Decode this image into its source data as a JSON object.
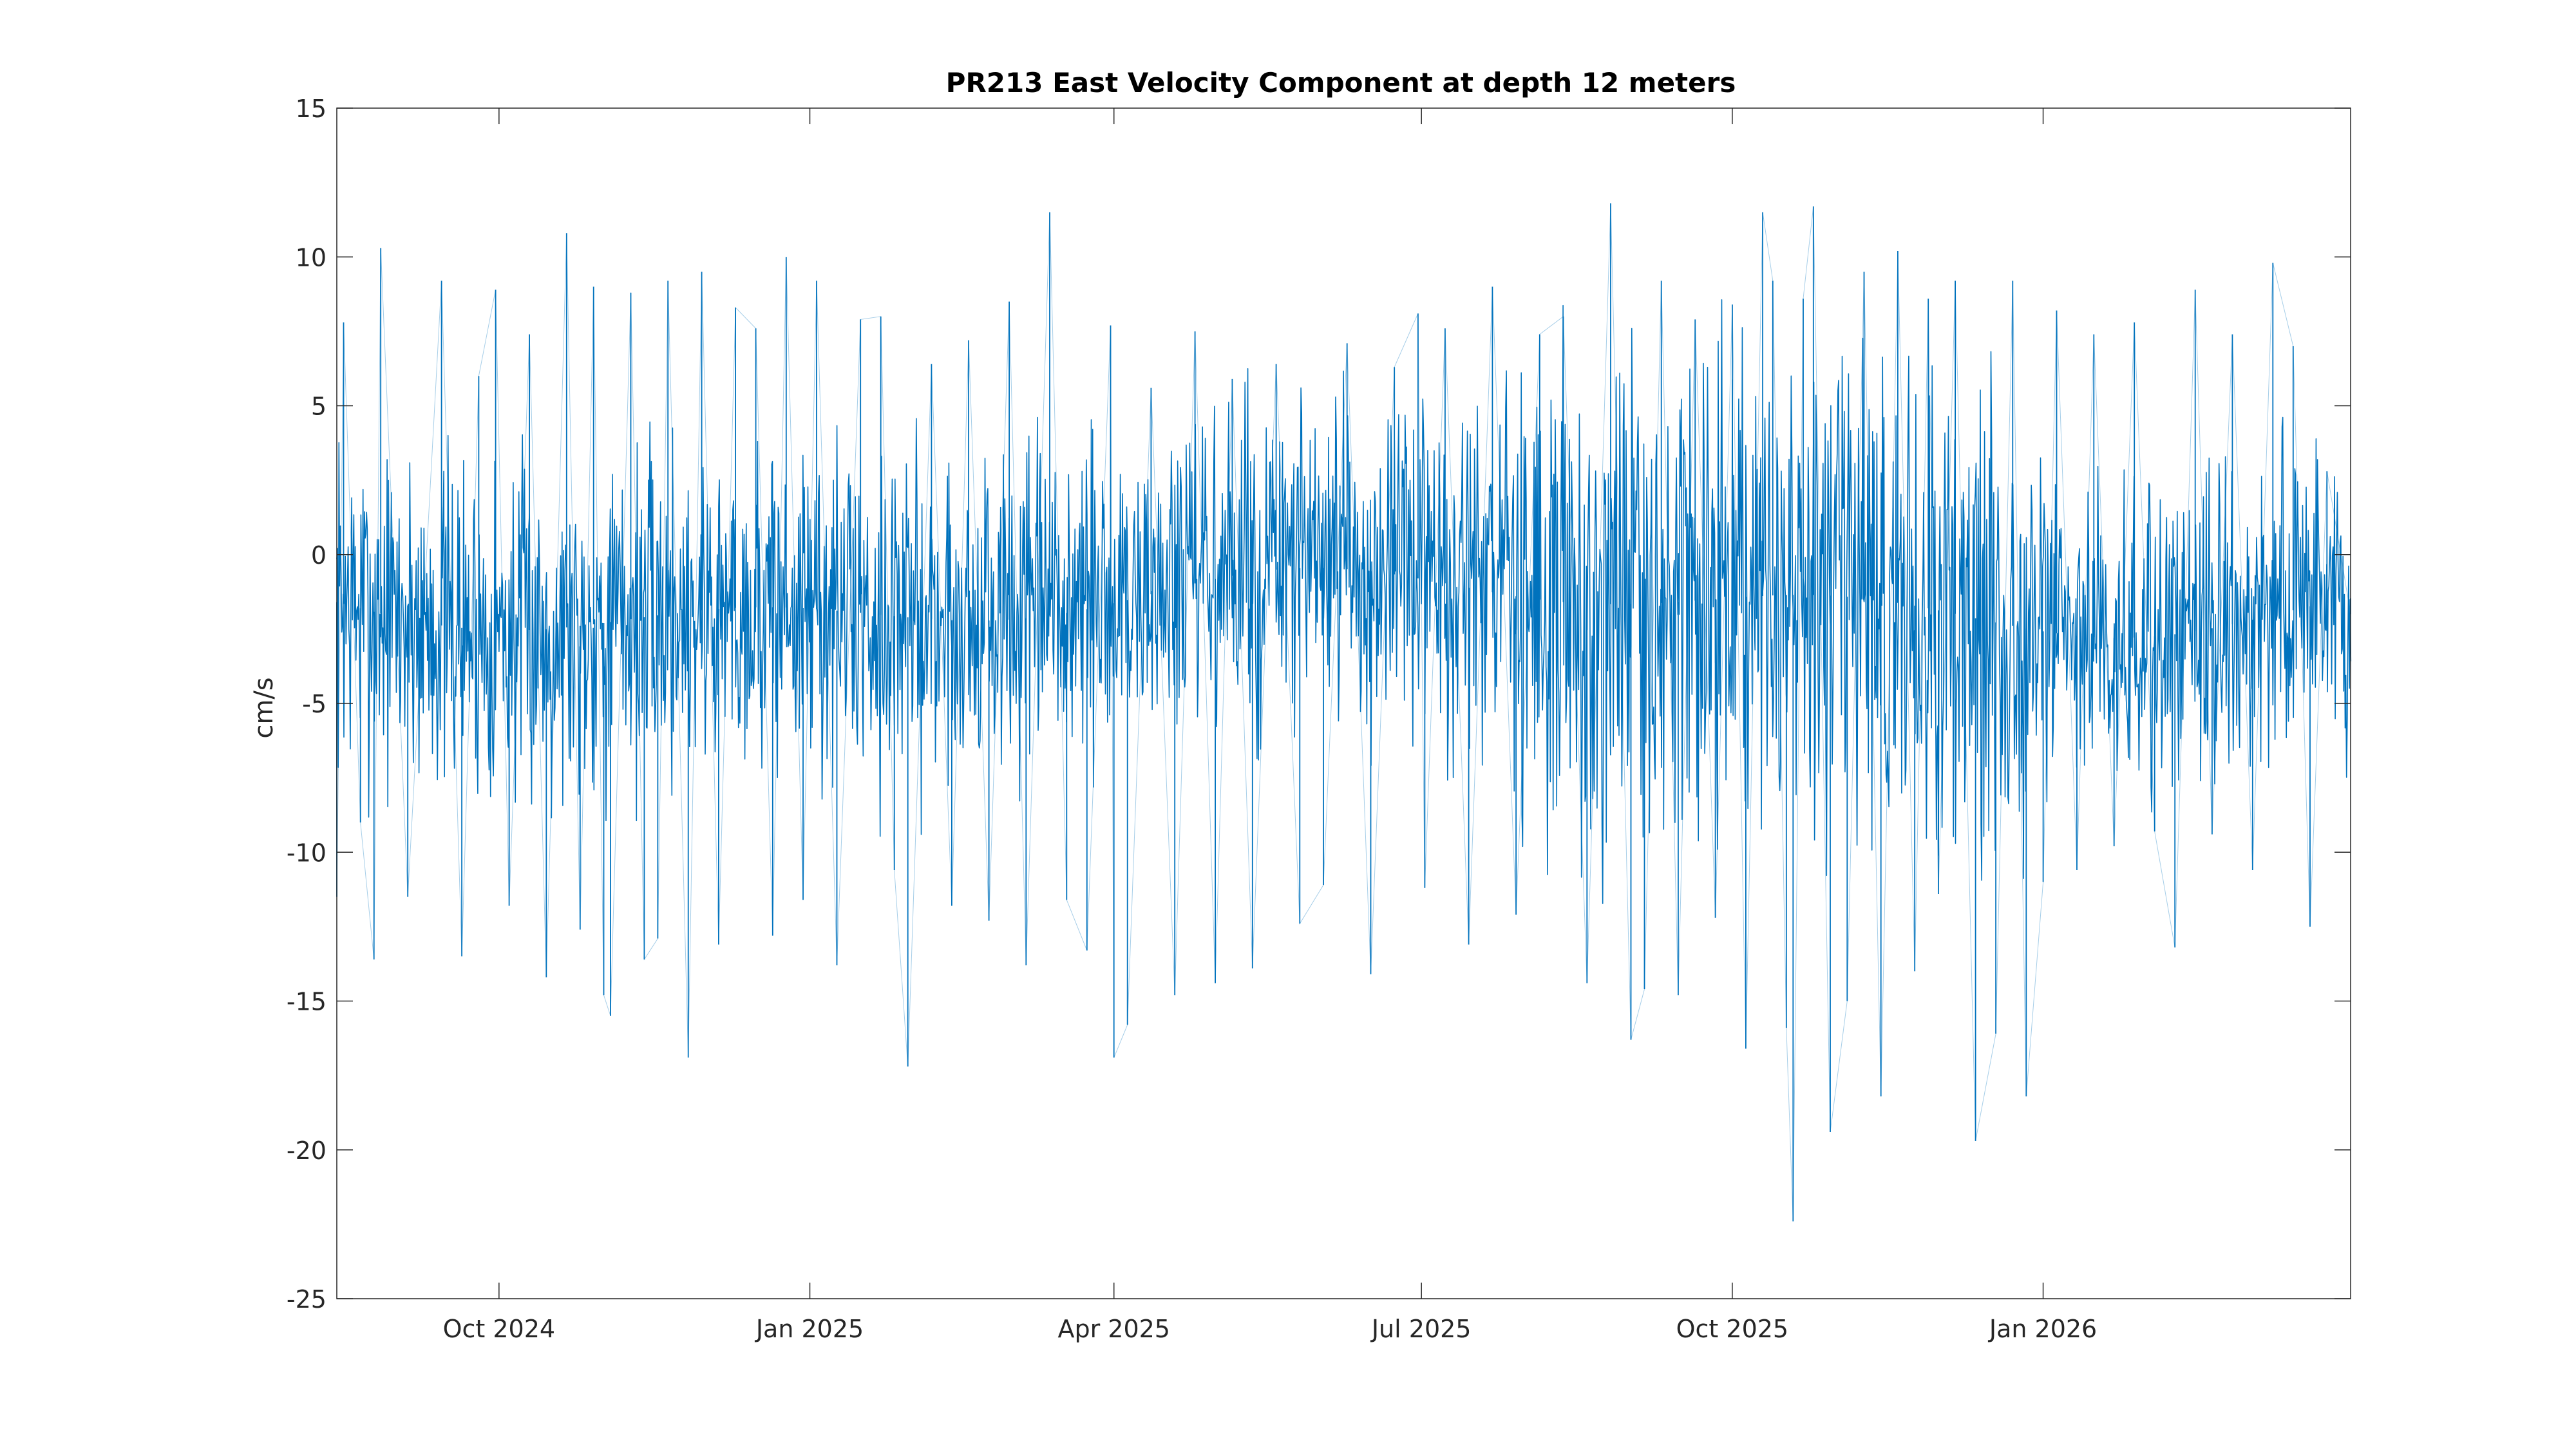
{
  "chart_data": {
    "type": "line",
    "title": "PR213 East Velocity Component at depth 12 meters",
    "xlabel": "",
    "ylabel": "cm/s",
    "xlim": [
      "2024-08-14",
      "2026-04-02"
    ],
    "ylim": [
      -25,
      15
    ],
    "x_ticks": [
      {
        "date": "2024-10-01",
        "label": "Oct 2024"
      },
      {
        "date": "2025-01-01",
        "label": "Jan 2025"
      },
      {
        "date": "2025-04-01",
        "label": "Apr 2025"
      },
      {
        "date": "2025-07-01",
        "label": "Jul 2025"
      },
      {
        "date": "2025-10-01",
        "label": "Oct 2025"
      },
      {
        "date": "2026-01-01",
        "label": "Jan 2026"
      }
    ],
    "y_ticks": [
      15,
      10,
      5,
      0,
      -5,
      -10,
      -15,
      -20,
      -25
    ],
    "grid": false,
    "series": [
      {
        "color": "#0072BD",
        "x": [
          "2024-08-14",
          "2024-08-16",
          "2024-08-21",
          "2024-08-25",
          "2024-08-27",
          "2024-09-04",
          "2024-09-14",
          "2024-09-20",
          "2024-09-25",
          "2024-09-30",
          "2024-10-04",
          "2024-10-10",
          "2024-10-15",
          "2024-10-21",
          "2024-10-25",
          "2024-10-29",
          "2024-11-01",
          "2024-11-03",
          "2024-11-09",
          "2024-11-13",
          "2024-11-17",
          "2024-11-20",
          "2024-11-26",
          "2024-11-30",
          "2024-12-05",
          "2024-12-10",
          "2024-12-16",
          "2024-12-21",
          "2024-12-25",
          "2024-12-30",
          "2025-01-03",
          "2025-01-09",
          "2025-01-16",
          "2025-01-22",
          "2025-01-26",
          "2025-01-30",
          "2025-02-06",
          "2025-02-12",
          "2025-02-17",
          "2025-02-23",
          "2025-03-01",
          "2025-03-06",
          "2025-03-13",
          "2025-03-18",
          "2025-03-24",
          "2025-03-31",
          "2025-04-01",
          "2025-04-05",
          "2025-04-12",
          "2025-04-19",
          "2025-04-25",
          "2025-05-01",
          "2025-05-06",
          "2025-05-12",
          "2025-05-19",
          "2025-05-26",
          "2025-06-02",
          "2025-06-09",
          "2025-06-16",
          "2025-06-23",
          "2025-06-30",
          "2025-07-02",
          "2025-07-08",
          "2025-07-15",
          "2025-07-22",
          "2025-07-29",
          "2025-08-05",
          "2025-08-12",
          "2025-08-19",
          "2025-08-26",
          "2025-09-01",
          "2025-09-05",
          "2025-09-10",
          "2025-09-15",
          "2025-09-20",
          "2025-09-26",
          "2025-10-01",
          "2025-10-05",
          "2025-10-10",
          "2025-10-13",
          "2025-10-17",
          "2025-10-19",
          "2025-10-22",
          "2025-10-25",
          "2025-10-30",
          "2025-11-04",
          "2025-11-09",
          "2025-11-14",
          "2025-11-19",
          "2025-11-24",
          "2025-11-28",
          "2025-12-01",
          "2025-12-06",
          "2025-12-12",
          "2025-12-18",
          "2025-12-23",
          "2025-12-27",
          "2026-01-01",
          "2026-01-05",
          "2026-01-11",
          "2026-01-16",
          "2026-01-22",
          "2026-01-28",
          "2026-02-03",
          "2026-02-09",
          "2026-02-15",
          "2026-02-20",
          "2026-02-26",
          "2026-03-04",
          "2026-03-10",
          "2026-03-16",
          "2026-03-21",
          "2026-03-26",
          "2026-04-02"
        ],
        "y": [
          -11.5,
          7.8,
          -9.0,
          -13.6,
          10.3,
          -11.5,
          9.2,
          -13.5,
          6.0,
          8.9,
          -11.8,
          7.4,
          -14.2,
          10.8,
          -12.6,
          9.0,
          -14.8,
          -15.5,
          8.8,
          -13.6,
          -12.9,
          9.2,
          -16.9,
          9.5,
          -13.1,
          8.3,
          7.6,
          -12.8,
          10.0,
          -11.6,
          9.2,
          -13.8,
          7.9,
          8.0,
          -10.6,
          -17.2,
          6.4,
          -11.8,
          7.2,
          -12.3,
          8.5,
          -13.8,
          11.5,
          -11.6,
          -13.3,
          7.7,
          -16.9,
          -15.8,
          5.6,
          -14.8,
          7.5,
          -14.4,
          5.9,
          -13.9,
          6.4,
          -12.4,
          -11.1,
          7.1,
          -14.1,
          6.3,
          8.1,
          -11.2,
          7.6,
          -13.1,
          9.0,
          -12.1,
          7.4,
          8.0,
          -14.4,
          11.8,
          -16.3,
          -14.6,
          9.2,
          -14.8,
          7.9,
          -12.2,
          8.4,
          -16.6,
          11.5,
          9.2,
          -15.9,
          -22.4,
          8.6,
          11.7,
          -19.4,
          -15.0,
          9.5,
          -18.2,
          10.2,
          -14.0,
          8.6,
          -11.4,
          9.2,
          -19.7,
          -16.1,
          9.2,
          -18.2,
          -11.0,
          8.2,
          -10.6,
          7.4,
          -9.8,
          7.8,
          -9.3,
          -13.2,
          8.9,
          -9.4,
          7.4,
          -10.6,
          9.8,
          7.0,
          -12.5,
          2.8,
          -2.0
        ]
      }
    ]
  }
}
